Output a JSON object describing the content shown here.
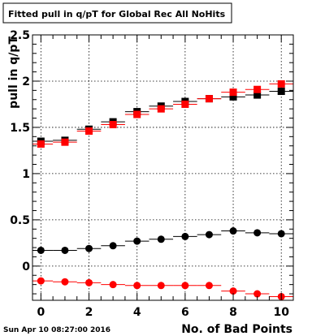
{
  "footer": {
    "timestamp": "Sun Apr 10 08:27:00 2016"
  },
  "chart_data": {
    "type": "scatter",
    "title": "Fitted pull in q/pT for Global Rec All NoHits",
    "xlabel": "No. of Bad Points",
    "ylabel": "pull in q/pT",
    "xlim": [
      -0.35,
      10.5
    ],
    "ylim": [
      -0.37,
      2.5
    ],
    "x_ticks": [
      0,
      2,
      4,
      6,
      8,
      10
    ],
    "x_tick_labels": [
      "0",
      "2",
      "4",
      "6",
      "8",
      "10"
    ],
    "y_ticks": [
      0,
      0.5,
      1,
      1.5,
      2,
      2.5
    ],
    "y_tick_labels": [
      "0",
      "0.5",
      "1",
      "1.5",
      "2",
      "2.5"
    ],
    "grid": true,
    "x": [
      0,
      1,
      2,
      3,
      4,
      5,
      6,
      7,
      8,
      9,
      10
    ],
    "series": [
      {
        "values": [
          1.35,
          1.36,
          1.48,
          1.56,
          1.67,
          1.73,
          1.78,
          1.81,
          1.83,
          1.85,
          1.89
        ],
        "color": "#000000",
        "marker": "square"
      },
      {
        "values": [
          1.32,
          1.34,
          1.46,
          1.53,
          1.64,
          1.7,
          1.75,
          1.81,
          1.88,
          1.91,
          1.97
        ],
        "color": "#ff0000",
        "marker": "square"
      },
      {
        "values": [
          0.17,
          0.17,
          0.19,
          0.22,
          0.27,
          0.29,
          0.32,
          0.34,
          0.38,
          0.36,
          0.35
        ],
        "color": "#000000",
        "marker": "circle"
      },
      {
        "values": [
          -0.16,
          -0.17,
          -0.18,
          -0.2,
          -0.21,
          -0.21,
          -0.21,
          -0.21,
          -0.27,
          -0.3,
          -0.33
        ],
        "color": "#ff0000",
        "marker": "circle"
      }
    ]
  }
}
